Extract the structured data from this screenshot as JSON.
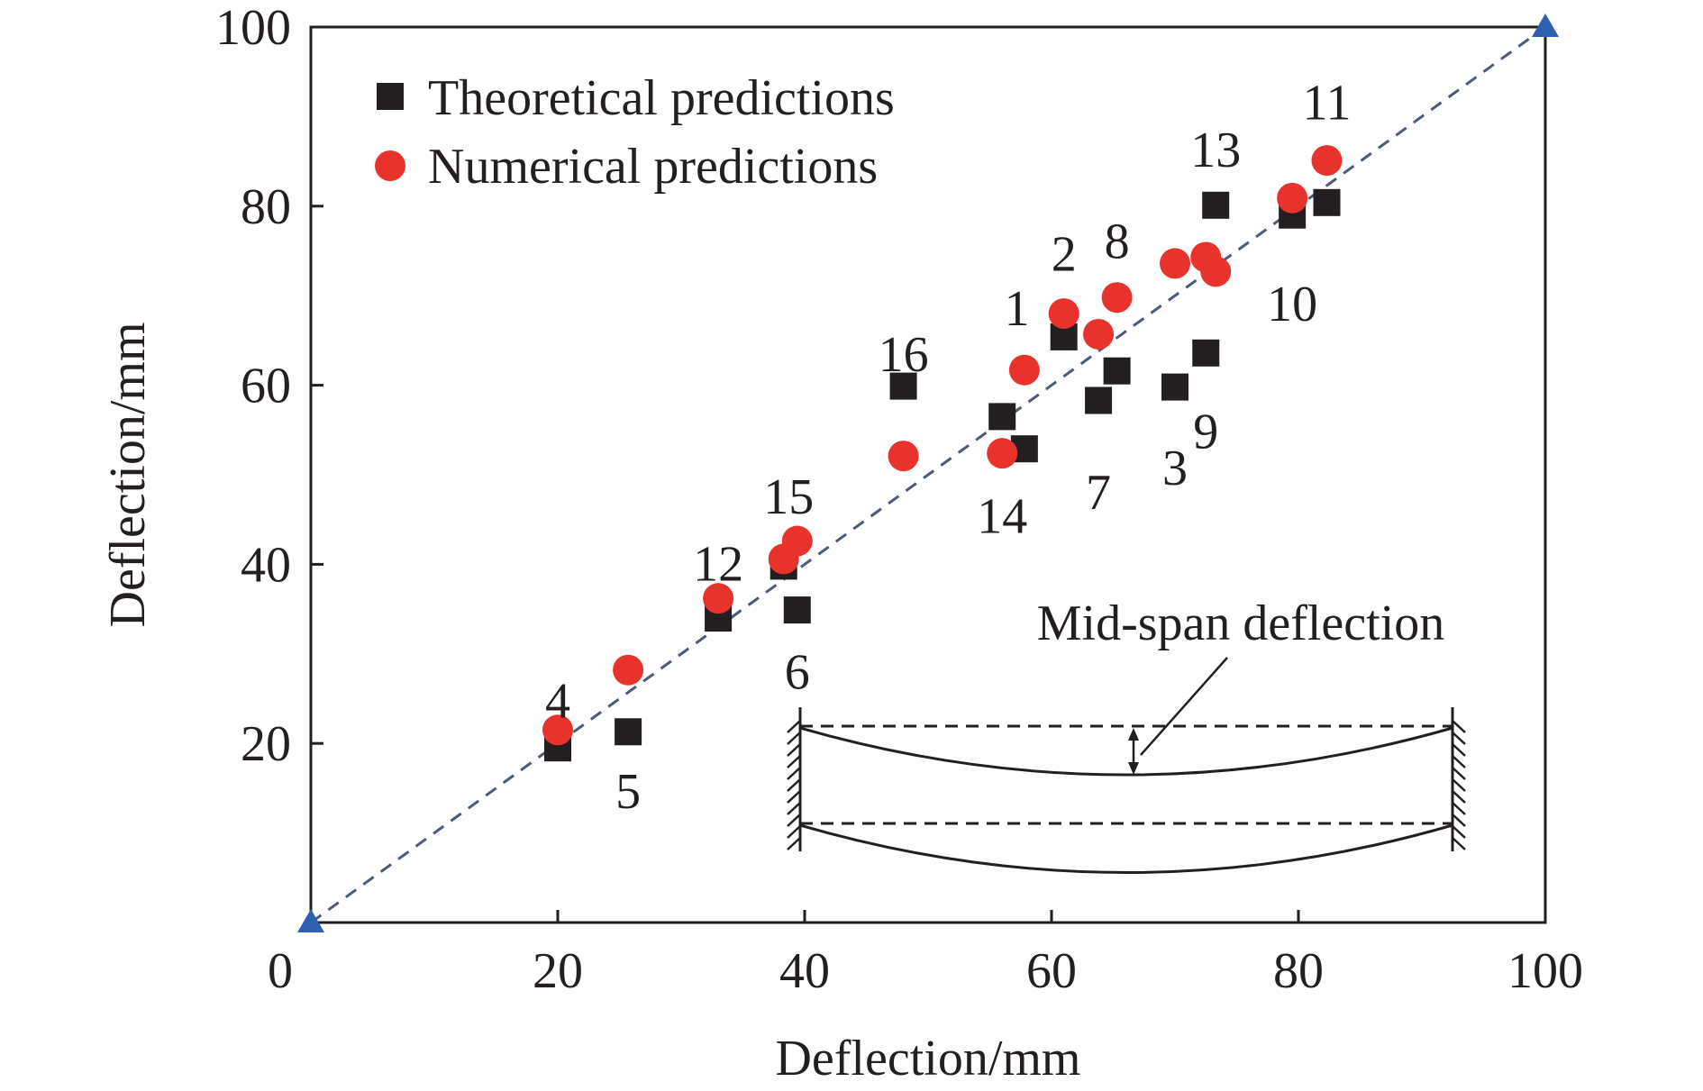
{
  "chart_data": {
    "type": "scatter",
    "title": "",
    "xlabel": "Deflection/mm",
    "ylabel": "Deflection/mm",
    "xlim": [
      0,
      100
    ],
    "ylim": [
      0,
      100
    ],
    "xticks": [
      "0",
      "20",
      "40",
      "60",
      "80",
      "100"
    ],
    "yticks": [
      "20",
      "40",
      "60",
      "80",
      "100"
    ],
    "grid": false,
    "legend_position": "top-left",
    "reference_line": {
      "from": [
        0,
        0
      ],
      "to": [
        100,
        100
      ],
      "style": "dashed",
      "endpoint_marker": "triangle"
    },
    "series": [
      {
        "name": "Theoretical predictions",
        "marker": "square",
        "color": "#231f20",
        "points": [
          {
            "x": 20.0,
            "y": 19.5
          },
          {
            "x": 25.7,
            "y": 21.3
          },
          {
            "x": 33.0,
            "y": 34.0
          },
          {
            "x": 38.3,
            "y": 39.8
          },
          {
            "x": 39.4,
            "y": 34.9
          },
          {
            "x": 48.0,
            "y": 59.9
          },
          {
            "x": 56.0,
            "y": 56.5
          },
          {
            "x": 57.8,
            "y": 52.9
          },
          {
            "x": 61.0,
            "y": 65.4
          },
          {
            "x": 63.8,
            "y": 58.3
          },
          {
            "x": 65.3,
            "y": 61.6
          },
          {
            "x": 70.0,
            "y": 59.8
          },
          {
            "x": 72.5,
            "y": 63.6
          },
          {
            "x": 73.3,
            "y": 80.1
          },
          {
            "x": 79.5,
            "y": 79.0
          },
          {
            "x": 82.3,
            "y": 80.4
          }
        ]
      },
      {
        "name": "Numerical predictions",
        "marker": "circle",
        "color": "#e8322c",
        "points": [
          {
            "x": 20.0,
            "y": 21.5
          },
          {
            "x": 25.7,
            "y": 28.2
          },
          {
            "x": 33.0,
            "y": 36.2
          },
          {
            "x": 38.3,
            "y": 40.6
          },
          {
            "x": 39.4,
            "y": 42.6
          },
          {
            "x": 48.0,
            "y": 52.1
          },
          {
            "x": 56.0,
            "y": 52.4
          },
          {
            "x": 57.8,
            "y": 61.7
          },
          {
            "x": 61.0,
            "y": 68.0
          },
          {
            "x": 63.8,
            "y": 65.7
          },
          {
            "x": 65.3,
            "y": 69.8
          },
          {
            "x": 70.0,
            "y": 73.6
          },
          {
            "x": 72.5,
            "y": 74.3
          },
          {
            "x": 73.3,
            "y": 72.7
          },
          {
            "x": 79.5,
            "y": 80.9
          },
          {
            "x": 82.3,
            "y": 85.1
          }
        ]
      }
    ],
    "point_labels": [
      {
        "text": "4",
        "x": 20.0,
        "y": 24.9
      },
      {
        "text": "5",
        "x": 25.7,
        "y": 14.8
      },
      {
        "text": "12",
        "x": 33.0,
        "y": 40.2
      },
      {
        "text": "15",
        "x": 38.7,
        "y": 47.7
      },
      {
        "text": "6",
        "x": 39.4,
        "y": 28.1
      },
      {
        "text": "16",
        "x": 48.0,
        "y": 63.6
      },
      {
        "text": "14",
        "x": 56.0,
        "y": 45.5
      },
      {
        "text": "1",
        "x": 57.2,
        "y": 68.7
      },
      {
        "text": "2",
        "x": 61.0,
        "y": 74.8
      },
      {
        "text": "7",
        "x": 63.8,
        "y": 48.2
      },
      {
        "text": "8",
        "x": 65.3,
        "y": 76.2
      },
      {
        "text": "3",
        "x": 70.0,
        "y": 50.9
      },
      {
        "text": "9",
        "x": 72.5,
        "y": 55.0
      },
      {
        "text": "13",
        "x": 73.3,
        "y": 86.4
      },
      {
        "text": "10",
        "x": 79.5,
        "y": 69.2
      },
      {
        "text": "11",
        "x": 82.3,
        "y": 91.7
      }
    ],
    "inset": {
      "label": "Mid-span deflection"
    }
  }
}
